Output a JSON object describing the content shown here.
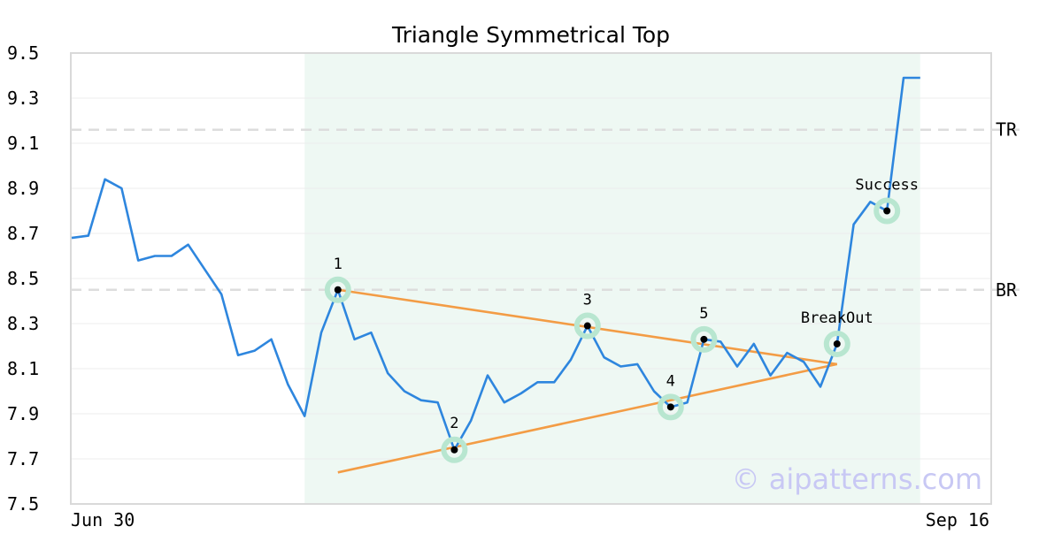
{
  "chart_data": {
    "type": "line",
    "title": "Triangle Symmetrical Top",
    "x_start_label": "Jun 30",
    "x_end_label": "Sep 16",
    "ylim": [
      7.5,
      9.5
    ],
    "yticks": [
      "7.5",
      "7.7",
      "7.9",
      "8.1",
      "8.3",
      "8.5",
      "8.7",
      "8.9",
      "9.1",
      "9.3",
      "9.5"
    ],
    "grid": true,
    "colors": {
      "price": "#2e86de",
      "trendline": "#f39c45",
      "marker_halo": "#b8e6d0",
      "marker": "#000000",
      "pattern_zone": "#eef8f3",
      "level": "#dddddd"
    },
    "series": [
      {
        "values": [
          8.68,
          8.69,
          8.94,
          8.9,
          8.58,
          8.6,
          8.6,
          8.65,
          8.54,
          8.43,
          8.16,
          8.18,
          8.23,
          8.03,
          7.89,
          8.26,
          8.45,
          8.23,
          8.26,
          8.08,
          8.0,
          7.96,
          7.95,
          7.74,
          7.87,
          8.07,
          7.95,
          7.99,
          8.04,
          8.04,
          8.14,
          8.29,
          8.15,
          8.11,
          8.12,
          8.0,
          7.93,
          7.95,
          8.23,
          8.22,
          8.11,
          8.21,
          8.07,
          8.17,
          8.13,
          8.02,
          8.21,
          8.74,
          8.84,
          8.8,
          9.39,
          9.39
        ]
      }
    ],
    "pattern_zone": {
      "start_index": 14,
      "end_index": 51
    },
    "levels": [
      {
        "label": "TR",
        "value": 9.16
      },
      {
        "label": "BR",
        "value": 8.45
      }
    ],
    "trendlines": [
      {
        "from": [
          16,
          8.45
        ],
        "to": [
          46,
          8.12
        ]
      },
      {
        "from": [
          16,
          7.64
        ],
        "to": [
          46,
          8.12
        ]
      }
    ],
    "points": [
      {
        "label": "1",
        "index": 16,
        "value": 8.45
      },
      {
        "label": "2",
        "index": 23,
        "value": 7.74
      },
      {
        "label": "3",
        "index": 31,
        "value": 8.29
      },
      {
        "label": "4",
        "index": 36,
        "value": 7.93
      },
      {
        "label": "5",
        "index": 38,
        "value": 8.23
      },
      {
        "label": "BreakOut",
        "index": 46,
        "value": 8.21
      },
      {
        "label": "Success",
        "index": 49,
        "value": 8.8
      }
    ],
    "watermark": "© aipatterns.com"
  }
}
